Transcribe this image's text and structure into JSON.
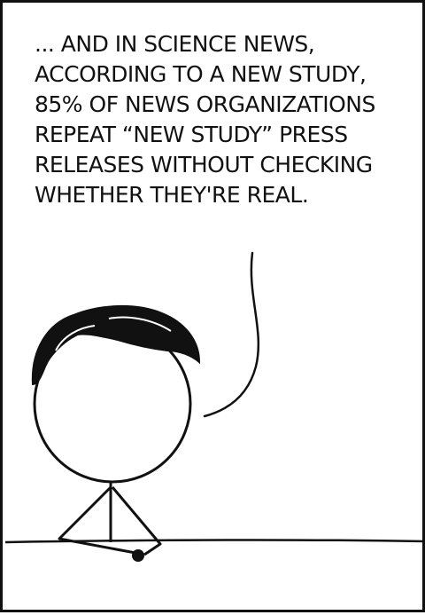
{
  "comic": {
    "caption_lines": [
      "... AND IN SCIENCE NEWS,",
      "ACCORDING TO A NEW STUDY,",
      "85% OF NEWS ORGANIZATIONS",
      "REPEAT “NEW STUDY” PRESS",
      "RELEASES WITHOUT CHECKING",
      "WHETHER THEY'RE REAL."
    ]
  },
  "colors": {
    "ink": "#111111",
    "paper": "#ffffff"
  },
  "icons": {
    "character": "stick-figure-news-anchor",
    "desk": "news-desk",
    "speech": "speech-tail"
  }
}
